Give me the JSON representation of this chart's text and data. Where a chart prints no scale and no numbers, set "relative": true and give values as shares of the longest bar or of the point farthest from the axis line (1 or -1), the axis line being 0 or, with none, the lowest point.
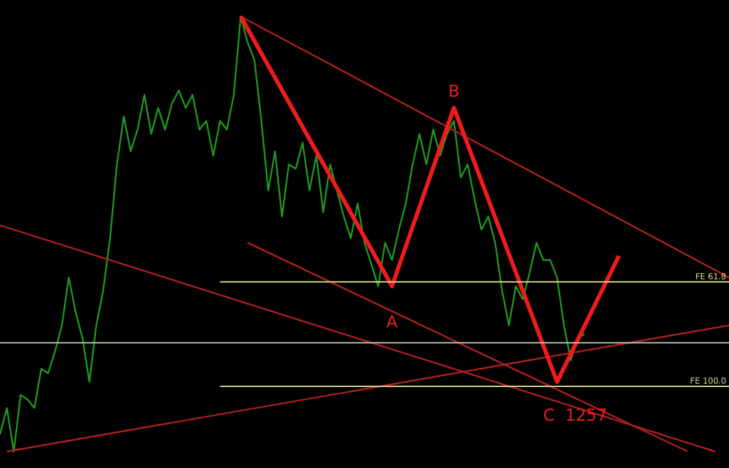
{
  "chart_data": {
    "type": "line",
    "relative": true,
    "categories": [
      null,
      null,
      null,
      null,
      null,
      null,
      null,
      null,
      null,
      null,
      null,
      null,
      null,
      null,
      null,
      null,
      null,
      null,
      null,
      null,
      null,
      null,
      null,
      null,
      null,
      null,
      null,
      null,
      null,
      null,
      null,
      null,
      null,
      null,
      null,
      null,
      null,
      null,
      null,
      null,
      null,
      null,
      null,
      null,
      null,
      null,
      null,
      null,
      null,
      null,
      null,
      null,
      null,
      null,
      null,
      null,
      null,
      null,
      null,
      null,
      null,
      null,
      null,
      null,
      null,
      null,
      null,
      null,
      null,
      null,
      null,
      null,
      null,
      null,
      null,
      null,
      null,
      null,
      null,
      null,
      null,
      null,
      null,
      null,
      null,
      null,
      null,
      null,
      null,
      null,
      null,
      null,
      null,
      null,
      null,
      null,
      null,
      null,
      null,
      null,
      null,
      null,
      null,
      null,
      null,
      null,
      null
    ],
    "series": [
      {
        "color": "#1f9a1f",
        "values": [
          0.04,
          0.1,
          0,
          0.13,
          0.12,
          0.1,
          0.19,
          0.18,
          0.23,
          0.29,
          0.4,
          0.32,
          0.26,
          0.16,
          0.29,
          0.37,
          0.49,
          0.66,
          0.77,
          0.69,
          0.74,
          0.82,
          0.73,
          0.79,
          0.74,
          0.8,
          0.83,
          0.79,
          0.82,
          0.74,
          0.76,
          0.68,
          0.76,
          0.74,
          0.82,
          1,
          0.94,
          0.9,
          0.76,
          0.6,
          0.69,
          0.54,
          0.66,
          0.65,
          0.71,
          0.6,
          0.68,
          0.55,
          0.66,
          0.6,
          0.54,
          0.49,
          0.57,
          0.48,
          0.43,
          0.38,
          0.48,
          0.44,
          0.51,
          0.57,
          0.66,
          0.73,
          0.66,
          0.74,
          0.68,
          0.73,
          0.76,
          0.63,
          0.66,
          0.58,
          0.51,
          0.54,
          0.48,
          0.37,
          0.29,
          0.38,
          0.35,
          0.41,
          0.48,
          0.44,
          0.44,
          0.4,
          0.29,
          0.21,
          0.26,
          0.27,
          null,
          null,
          null,
          null,
          null,
          null,
          null,
          null,
          null,
          null,
          null,
          null,
          null,
          null,
          null,
          null,
          null,
          null,
          null,
          null,
          null
        ]
      },
      {
        "color": "#b02020",
        "values": [
          null,
          null,
          null,
          null,
          null,
          null,
          null,
          null,
          null,
          null,
          null,
          null,
          null,
          null,
          null,
          null,
          null,
          null,
          null,
          null,
          null,
          null,
          null,
          null,
          null,
          null,
          null,
          null,
          null,
          null,
          null,
          null,
          null,
          null,
          null,
          1,
          null,
          null,
          null,
          null,
          null,
          null,
          null,
          null,
          null,
          null,
          null,
          null,
          null,
          null,
          null,
          null,
          null,
          null,
          null,
          null,
          null,
          null,
          null,
          null,
          null,
          null,
          null,
          null,
          null,
          null,
          null,
          null,
          null,
          null,
          null,
          null,
          null,
          null,
          null,
          null,
          null,
          null,
          null,
          null,
          null,
          null,
          null,
          null,
          null,
          null,
          null,
          null,
          null,
          null,
          null,
          null,
          null,
          null,
          null,
          null,
          null,
          null,
          null,
          null,
          null,
          null,
          null,
          null,
          null,
          null,
          0.4
        ]
      },
      {
        "color": "#b02020",
        "values": [
          0.52,
          null,
          null,
          null,
          null,
          null,
          null,
          null,
          null,
          null,
          null,
          null,
          null,
          null,
          null,
          null,
          null,
          null,
          null,
          null,
          null,
          null,
          null,
          null,
          null,
          null,
          null,
          null,
          null,
          null,
          null,
          null,
          null,
          null,
          null,
          null,
          null,
          null,
          null,
          null,
          null,
          null,
          null,
          null,
          null,
          null,
          null,
          null,
          null,
          null,
          null,
          null,
          null,
          null,
          null,
          null,
          null,
          null,
          null,
          null,
          null,
          null,
          null,
          null,
          null,
          null,
          null,
          null,
          null,
          null,
          null,
          null,
          null,
          null,
          null,
          null,
          null,
          null,
          null,
          null,
          null,
          null,
          null,
          null,
          null,
          null,
          null,
          null,
          null,
          null,
          null,
          null,
          null,
          null,
          null,
          null,
          null,
          null,
          null,
          null,
          null,
          null,
          null,
          null,
          0,
          null,
          null
        ]
      },
      {
        "color": "#b02020",
        "values": [
          null,
          0,
          null,
          null,
          null,
          null,
          null,
          null,
          null,
          null,
          null,
          null,
          null,
          null,
          null,
          null,
          null,
          null,
          null,
          null,
          null,
          null,
          null,
          null,
          null,
          null,
          null,
          null,
          null,
          null,
          null,
          null,
          null,
          null,
          null,
          null,
          null,
          null,
          null,
          null,
          null,
          null,
          null,
          null,
          null,
          null,
          null,
          null,
          null,
          null,
          null,
          null,
          null,
          null,
          null,
          null,
          null,
          null,
          null,
          null,
          null,
          null,
          null,
          null,
          null,
          null,
          null,
          null,
          null,
          null,
          null,
          null,
          null,
          null,
          null,
          null,
          null,
          null,
          null,
          null,
          null,
          null,
          null,
          null,
          null,
          null,
          null,
          null,
          null,
          null,
          null,
          null,
          null,
          null,
          null,
          null,
          null,
          null,
          null,
          null,
          null,
          null,
          null,
          null,
          null,
          null,
          0.29
        ]
      },
      {
        "color": "#b02020",
        "values": [
          null,
          null,
          null,
          null,
          null,
          null,
          null,
          null,
          null,
          null,
          null,
          null,
          null,
          null,
          null,
          null,
          null,
          null,
          null,
          null,
          null,
          null,
          null,
          null,
          null,
          null,
          null,
          null,
          null,
          null,
          null,
          null,
          null,
          null,
          null,
          null,
          0.48,
          null,
          null,
          null,
          null,
          null,
          null,
          null,
          null,
          null,
          null,
          null,
          null,
          null,
          null,
          null,
          null,
          null,
          null,
          null,
          null,
          null,
          null,
          null,
          null,
          null,
          null,
          null,
          null,
          null,
          null,
          null,
          null,
          null,
          null,
          null,
          null,
          null,
          null,
          null,
          null,
          null,
          null,
          null,
          null,
          null,
          null,
          null,
          null,
          null,
          null,
          null,
          null,
          null,
          null,
          null,
          null,
          null,
          null,
          null,
          null,
          null,
          null,
          null,
          0,
          null,
          null,
          null,
          null,
          null,
          null
        ]
      },
      {
        "color": "#ee1c1c",
        "values": [
          null,
          null,
          null,
          null,
          null,
          null,
          null,
          null,
          null,
          null,
          null,
          null,
          null,
          null,
          null,
          null,
          null,
          null,
          null,
          null,
          null,
          null,
          null,
          null,
          null,
          null,
          null,
          null,
          null,
          null,
          null,
          null,
          null,
          null,
          null,
          1,
          null,
          null,
          null,
          null,
          null,
          null,
          null,
          null,
          null,
          null,
          null,
          null,
          null,
          null,
          null,
          null,
          null,
          null,
          null,
          null,
          null,
          0.38,
          null,
          null,
          null,
          null,
          null,
          null,
          null,
          null,
          0.79,
          null,
          null,
          null,
          null,
          null,
          null,
          null,
          null,
          null,
          null,
          null,
          null,
          null,
          null,
          0.16,
          null,
          null,
          null,
          null,
          null,
          null,
          null,
          null,
          0.45,
          null,
          null,
          null,
          null,
          null,
          null,
          null,
          null,
          null,
          null,
          null,
          null,
          null,
          null,
          null,
          null
        ]
      }
    ],
    "ref_lines": [
      {
        "axis": "y",
        "value": 0.39,
        "label": "FE 61.8",
        "color": "#d8d890"
      },
      {
        "axis": "y",
        "value": 0.25,
        "color": "#b8c0a8"
      },
      {
        "axis": "y",
        "value": 0.15,
        "label": "FE 100.0",
        "color": "#d8d890"
      }
    ],
    "annotations": [
      "A",
      "B",
      "C",
      "1257"
    ]
  }
}
